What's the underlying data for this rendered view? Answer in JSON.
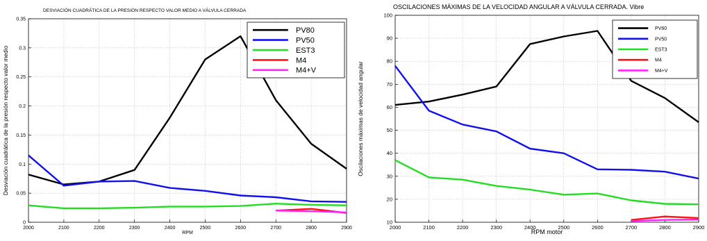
{
  "chart_data": [
    {
      "type": "line",
      "title": "DESVIACIÓN CUADRÁTICA DE LA PRESIÓN RESPECTO VALOR MEDIO A VÁLVULA CERRADA",
      "xlabel": "RPM",
      "ylabel": "Desviación cuadrática de la presión respecto valor medio",
      "xlim": [
        2000,
        2900
      ],
      "ylim": [
        0,
        0.35
      ],
      "xticks": [
        2000,
        2100,
        2200,
        2300,
        2400,
        2500,
        2600,
        2700,
        2800,
        2900
      ],
      "yticks": [
        0,
        0.05,
        0.1,
        0.15,
        0.2,
        0.25,
        0.3,
        0.35
      ],
      "ytick_labels": [
        "0",
        "0.05",
        "0.1",
        "0.15",
        "0.2",
        "0.25",
        "0.3",
        "0.35"
      ],
      "grid": true,
      "legend": "top-right",
      "series": [
        {
          "name": "PV80",
          "color": "#000000",
          "x": [
            2000,
            2100,
            2200,
            2300,
            2400,
            2500,
            2600,
            2700,
            2800,
            2900
          ],
          "y": [
            0.082,
            0.065,
            0.07,
            0.09,
            0.18,
            0.28,
            0.32,
            0.21,
            0.135,
            0.092
          ]
        },
        {
          "name": "PV50",
          "color": "#1111ee",
          "x": [
            2000,
            2100,
            2200,
            2300,
            2400,
            2500,
            2600,
            2700,
            2800,
            2900
          ],
          "y": [
            0.115,
            0.063,
            0.07,
            0.071,
            0.059,
            0.054,
            0.046,
            0.043,
            0.036,
            0.035
          ]
        },
        {
          "name": "EST3",
          "color": "#22dd22",
          "x": [
            2000,
            2100,
            2200,
            2300,
            2400,
            2500,
            2600,
            2700,
            2800,
            2900
          ],
          "y": [
            0.029,
            0.024,
            0.024,
            0.025,
            0.027,
            0.027,
            0.028,
            0.032,
            0.03,
            0.029
          ]
        },
        {
          "name": "M4",
          "color": "#ff1111",
          "x": [
            2700,
            2800,
            2900
          ],
          "y": [
            0.02,
            0.023,
            0.016
          ]
        },
        {
          "name": "M4+V",
          "color": "#ff22ff",
          "x": [
            2700,
            2800,
            2900
          ],
          "y": [
            0.02,
            0.019,
            0.017
          ]
        }
      ]
    },
    {
      "type": "line",
      "title": "OSCILACIONES MÁXIMAS DE LA VELOCIDAD ANGULAR A VÁLVULA CERRADA. Vibre",
      "xlabel": "RPM motor",
      "ylabel": "Oscilaciones máximas de velocidad angular",
      "xlim": [
        2000,
        2900
      ],
      "ylim": [
        10,
        100
      ],
      "xticks": [
        2000,
        2100,
        2200,
        2300,
        2400,
        2500,
        2600,
        2700,
        2800,
        2900
      ],
      "yticks": [
        10,
        20,
        30,
        40,
        50,
        60,
        70,
        80,
        90,
        100
      ],
      "ytick_labels": [
        "10",
        "20",
        "30",
        "40",
        "50",
        "60",
        "70",
        "80",
        "90",
        "100"
      ],
      "grid": true,
      "legend": "top-right",
      "series": [
        {
          "name": "PV60",
          "color": "#000000",
          "x": [
            2000,
            2100,
            2200,
            2300,
            2400,
            2500,
            2600,
            2700,
            2800,
            2900
          ],
          "y": [
            61,
            62.5,
            65.5,
            69,
            87.5,
            90.8,
            93.2,
            71.5,
            64,
            53.5
          ]
        },
        {
          "name": "PV50",
          "color": "#1111ee",
          "x": [
            2000,
            2100,
            2200,
            2300,
            2400,
            2500,
            2600,
            2700,
            2800,
            2900
          ],
          "y": [
            78,
            58.5,
            52.5,
            49.5,
            42,
            40,
            33,
            32.8,
            32,
            29
          ]
        },
        {
          "name": "EST3",
          "color": "#22dd22",
          "x": [
            2000,
            2100,
            2200,
            2300,
            2400,
            2500,
            2600,
            2700,
            2800,
            2900
          ],
          "y": [
            37,
            29.5,
            28.5,
            25.8,
            24.2,
            22,
            22.5,
            19.5,
            18,
            17.8
          ]
        },
        {
          "name": "M4",
          "color": "#ff1111",
          "x": [
            2700,
            2800,
            2900
          ],
          "y": [
            11,
            12.5,
            11.8
          ]
        },
        {
          "name": "M4+V",
          "color": "#ff22ff",
          "x": [
            2700,
            2800,
            2900
          ],
          "y": [
            10.5,
            11,
            11.2
          ]
        }
      ]
    }
  ]
}
